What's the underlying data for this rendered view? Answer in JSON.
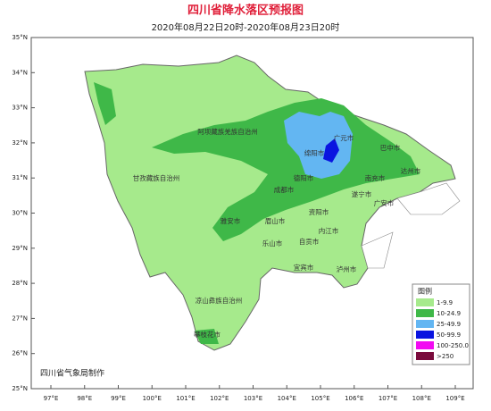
{
  "header": {
    "title": "四川省降水落区预报图",
    "subtitle": "2020年08月22日20时-2020年08月23日20时"
  },
  "axes": {
    "lat": [
      "35°N",
      "34°N",
      "33°N",
      "32°N",
      "31°N",
      "30°N",
      "29°N",
      "28°N",
      "27°N",
      "26°N",
      "25°N"
    ],
    "lon": [
      "97°E",
      "98°E",
      "99°E",
      "100°E",
      "101°E",
      "102°E",
      "103°E",
      "104°E",
      "105°E",
      "106°E",
      "107°E",
      "108°E",
      "109°E"
    ]
  },
  "places": [
    "阿坝藏族羌族自治州",
    "甘孜藏族自治州",
    "广元市",
    "巴中市",
    "绵阳市",
    "达州市",
    "德阳市",
    "南充市",
    "成都市",
    "遂宁市",
    "广安市",
    "雅安市",
    "眉山市",
    "资阳市",
    "内江市",
    "乐山市",
    "自贡市",
    "宜宾市",
    "泸州市",
    "凉山彝族自治州",
    "攀枝花市"
  ],
  "legend": {
    "title": "图例",
    "items": [
      {
        "label": "1-9.9",
        "color": "#a6ea8c"
      },
      {
        "label": "10-24.9",
        "color": "#3fb848"
      },
      {
        "label": "25-49.9",
        "color": "#63b6f2"
      },
      {
        "label": "50-99.9",
        "color": "#0a14e0"
      },
      {
        "label": "100-250.0",
        "color": "#f20af2"
      },
      {
        "label": ">250",
        "color": "#7a0a3c"
      }
    ]
  },
  "credit": "四川省气象局制作"
}
